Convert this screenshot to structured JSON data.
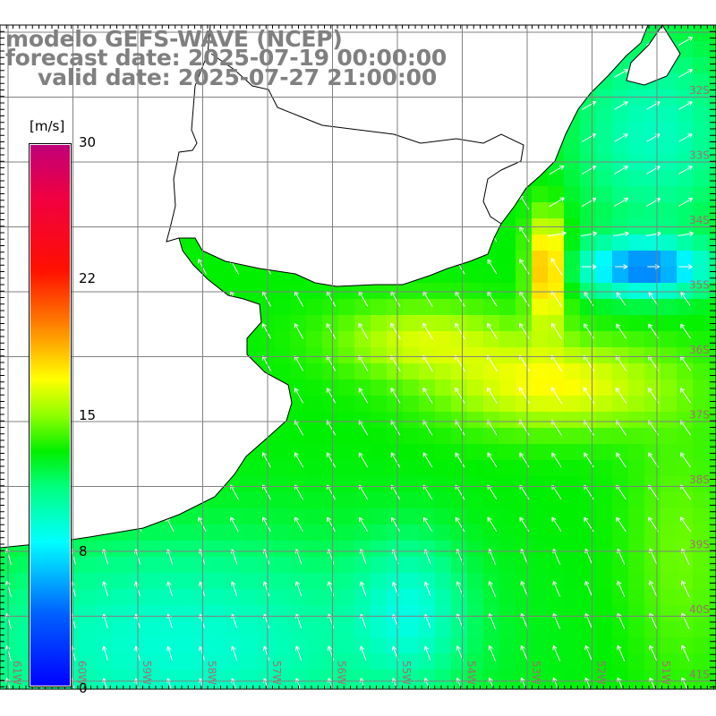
{
  "title": {
    "model": "modelo GEFS-WAVE (NCEP)",
    "forecast": "forecast date: 2025-07-19 00:00:00",
    "valid": "valid date: 2025-07-27 21:00:00"
  },
  "colorbar": {
    "unit": "[m/s]",
    "ticks": [
      "30",
      "22",
      "15",
      "8",
      "0"
    ],
    "tick_values": [
      30,
      22,
      15,
      8,
      0
    ],
    "stops": [
      [
        0,
        "#0000ff"
      ],
      [
        4,
        "#0060ff"
      ],
      [
        8,
        "#00ffff"
      ],
      [
        11,
        "#00ff80"
      ],
      [
        13,
        "#00f000"
      ],
      [
        15,
        "#90ff00"
      ],
      [
        17,
        "#ffff00"
      ],
      [
        20,
        "#ff8000"
      ],
      [
        23,
        "#ff1000"
      ],
      [
        27,
        "#f00040"
      ],
      [
        30,
        "#c0007a"
      ]
    ]
  },
  "axes": {
    "lon_labels": [
      "61W",
      "60W",
      "59W",
      "58W",
      "57W",
      "56W",
      "55W",
      "54W",
      "53W",
      "52W",
      "51W"
    ],
    "lat_labels": [
      "32S",
      "33S",
      "34S",
      "35S",
      "36S",
      "37S",
      "38S",
      "39S",
      "40S",
      "41S"
    ]
  },
  "colors": {
    "label": "#a07070",
    "grid": "#808080",
    "land": "#ffffff",
    "coast": "#000000",
    "arrow": "#ffffff"
  }
}
